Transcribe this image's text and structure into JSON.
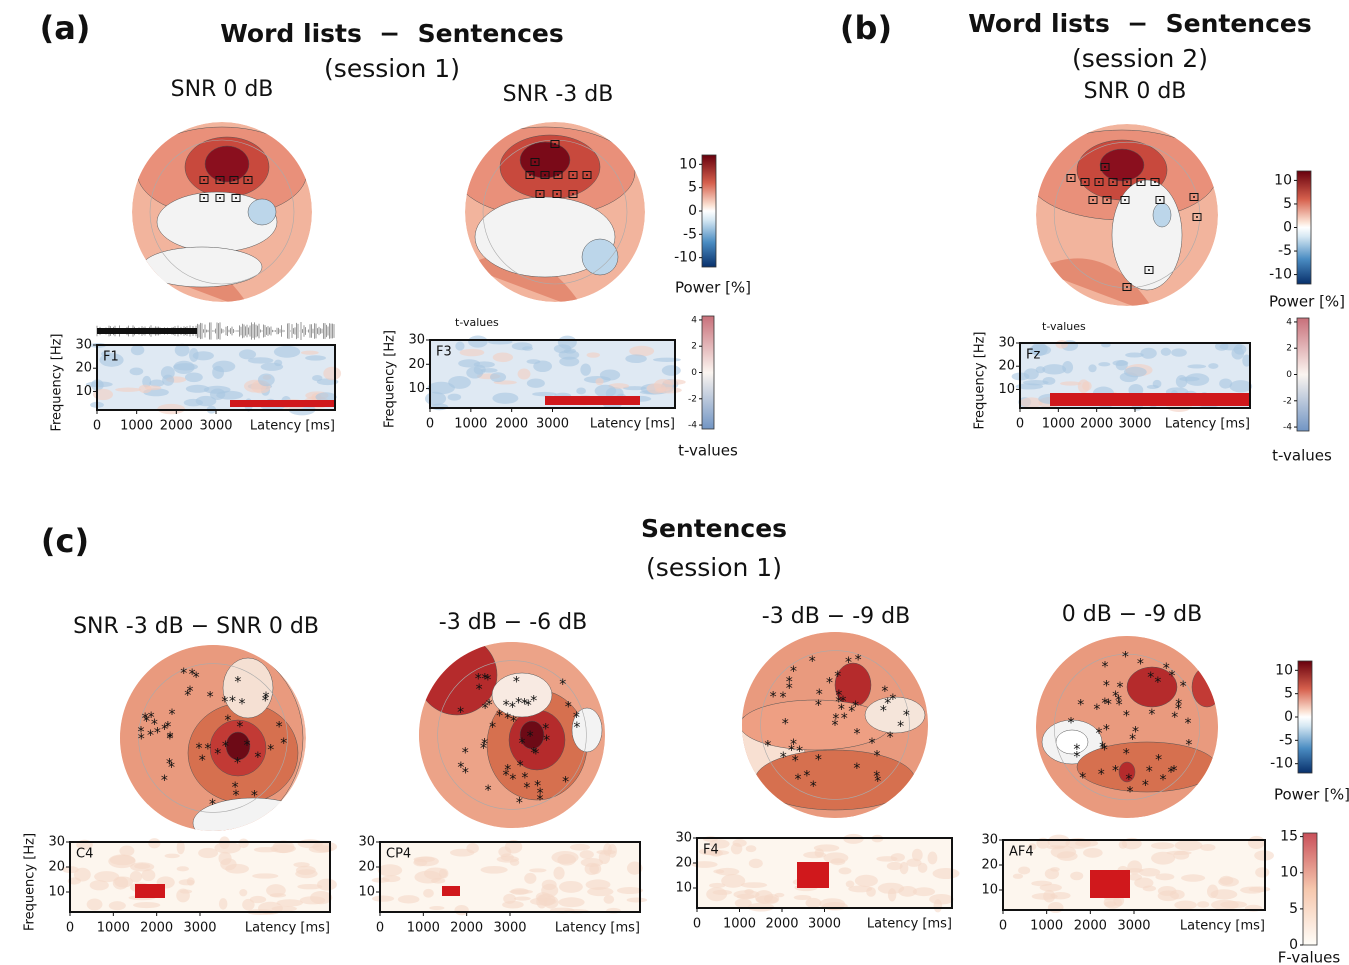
{
  "panel_labels": [
    "(a)",
    "(b)",
    "(c)"
  ],
  "headings": [
    {
      "title": "Word lists  −  Sentences",
      "subtitle": "(session 1)"
    },
    {
      "title": "Word lists  −  Sentences",
      "subtitle": "(session 2)"
    },
    {
      "title": "Sentences",
      "subtitle": "(session 1)"
    }
  ],
  "plots": [
    {
      "condition": "SNR 0 dB",
      "channel": "F1"
    },
    {
      "condition": "SNR -3 dB",
      "channel": "F3"
    },
    {
      "condition": "SNR 0 dB",
      "channel": "Fz"
    },
    {
      "condition": "SNR -3 dB  −  SNR 0 dB",
      "channel": "C4"
    },
    {
      "condition": "-3 dB  −  -6 dB",
      "channel": "CP4"
    },
    {
      "condition": "-3 dB  −  -9 dB",
      "channel": "F4"
    },
    {
      "condition": "0 dB  −  -9 dB",
      "channel": "AF4"
    }
  ],
  "frequency_axis": {
    "label": "Frequency [Hz]",
    "ylim": [
      2,
      30
    ],
    "ticks": [
      10,
      20,
      30
    ]
  },
  "latency_axis": {
    "label": "Latency [ms]",
    "xlim": [
      0,
      6000
    ],
    "ticks": [
      0,
      1000,
      2000,
      3000
    ]
  },
  "inset_label": "t-values",
  "colorbars": [
    {
      "label": "Power [%]",
      "lim": [
        -12,
        12
      ],
      "ticks": [
        10,
        5,
        0,
        -5,
        -10
      ]
    },
    {
      "label": "t-values",
      "lim": [
        -4.3,
        4.3
      ],
      "ticks": [
        4,
        2,
        0,
        -2,
        -4
      ]
    },
    {
      "label": "F-values",
      "lim": [
        0,
        15.5
      ],
      "ticks": [
        15,
        10,
        5,
        0
      ]
    }
  ]
}
